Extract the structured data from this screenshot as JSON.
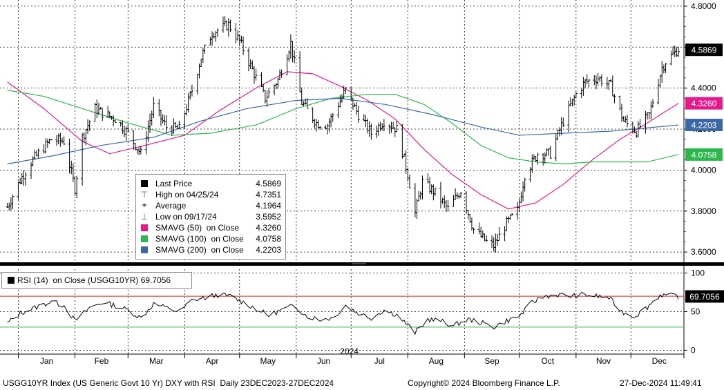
{
  "chart_data": [
    {
      "type": "line",
      "title": "USGG10YR Index (US Generic Govt 10 Yr) DXY with RSI  Daily 23DEC2023-27DEC2024",
      "ylim": [
        3.55,
        4.83
      ],
      "ytick_labels": [
        "4.8000",
        "4.6000",
        "4.4000",
        "4.2000",
        "4.0000",
        "3.8000",
        "3.6000"
      ],
      "yticks": [
        4.8,
        4.6,
        4.4,
        4.2,
        4.0,
        3.8,
        3.6
      ],
      "x_months": [
        "Jan",
        "Feb",
        "Mar",
        "Apr",
        "May",
        "Jun",
        "Jul",
        "Aug",
        "Sep",
        "Oct",
        "Nov",
        "Dec"
      ],
      "x_year_label": "2024",
      "grid": true,
      "price_series": {
        "name": "Last Price",
        "x": [
          "2023-12-26",
          "2024-01-02",
          "2024-01-08",
          "2024-01-15",
          "2024-01-19",
          "2024-01-26",
          "2024-02-01",
          "2024-02-05",
          "2024-02-12",
          "2024-02-16",
          "2024-02-23",
          "2024-03-01",
          "2024-03-08",
          "2024-03-15",
          "2024-03-22",
          "2024-03-29",
          "2024-04-05",
          "2024-04-10",
          "2024-04-16",
          "2024-04-25",
          "2024-05-01",
          "2024-05-08",
          "2024-05-15",
          "2024-05-22",
          "2024-05-29",
          "2024-06-04",
          "2024-06-12",
          "2024-06-18",
          "2024-06-28",
          "2024-07-05",
          "2024-07-12",
          "2024-07-19",
          "2024-07-26",
          "2024-08-01",
          "2024-08-05",
          "2024-08-09",
          "2024-08-16",
          "2024-08-23",
          "2024-08-30",
          "2024-09-06",
          "2024-09-13",
          "2024-09-17",
          "2024-09-24",
          "2024-09-30",
          "2024-10-04",
          "2024-10-11",
          "2024-10-18",
          "2024-10-25",
          "2024-11-01",
          "2024-11-06",
          "2024-11-13",
          "2024-11-20",
          "2024-11-27",
          "2024-12-04",
          "2024-12-11",
          "2024-12-18",
          "2024-12-20",
          "2024-12-27"
        ],
        "values": [
          3.82,
          3.95,
          4.04,
          4.11,
          4.15,
          4.14,
          3.91,
          4.16,
          4.3,
          4.28,
          4.25,
          4.18,
          4.08,
          4.31,
          4.21,
          4.2,
          4.39,
          4.55,
          4.67,
          4.71,
          4.63,
          4.49,
          4.35,
          4.44,
          4.62,
          4.33,
          4.23,
          4.22,
          4.39,
          4.27,
          4.18,
          4.24,
          4.2,
          3.98,
          3.79,
          3.94,
          3.89,
          3.81,
          3.9,
          3.71,
          3.65,
          3.63,
          3.74,
          3.8,
          3.98,
          4.08,
          4.08,
          4.24,
          4.37,
          4.43,
          4.45,
          4.41,
          4.24,
          4.19,
          4.27,
          4.5,
          4.53,
          4.59
        ]
      },
      "series": [
        {
          "name": "SMAVG (50)  on Close",
          "color": "#e6198c",
          "x": [
            "2023-12-26",
            "2024-01-15",
            "2024-02-05",
            "2024-02-20",
            "2024-03-10",
            "2024-04-01",
            "2024-04-20",
            "2024-05-10",
            "2024-05-27",
            "2024-06-10",
            "2024-06-25",
            "2024-07-10",
            "2024-07-25",
            "2024-08-10",
            "2024-08-25",
            "2024-09-10",
            "2024-09-25",
            "2024-10-10",
            "2024-10-25",
            "2024-11-10",
            "2024-11-25",
            "2024-12-10",
            "2024-12-27"
          ],
          "values": [
            4.43,
            4.3,
            4.14,
            4.08,
            4.12,
            4.17,
            4.29,
            4.4,
            4.48,
            4.47,
            4.41,
            4.34,
            4.25,
            4.1,
            3.98,
            3.88,
            3.81,
            3.84,
            3.93,
            4.05,
            4.15,
            4.23,
            4.326
          ]
        },
        {
          "name": "SMAVG (100)  on Close",
          "color": "#2db84d",
          "x": [
            "2023-12-26",
            "2024-01-15",
            "2024-02-05",
            "2024-03-01",
            "2024-03-25",
            "2024-04-15",
            "2024-05-10",
            "2024-06-01",
            "2024-06-20",
            "2024-07-10",
            "2024-07-25",
            "2024-08-10",
            "2024-08-25",
            "2024-09-10",
            "2024-09-25",
            "2024-10-10",
            "2024-10-25",
            "2024-11-10",
            "2024-11-25",
            "2024-12-10",
            "2024-12-27"
          ],
          "values": [
            4.39,
            4.36,
            4.3,
            4.23,
            4.17,
            4.18,
            4.22,
            4.3,
            4.35,
            4.37,
            4.37,
            4.32,
            4.23,
            4.12,
            4.06,
            4.04,
            4.03,
            4.04,
            4.04,
            4.04,
            4.076
          ]
        },
        {
          "name": "SMAVG (200)  on Close",
          "color": "#3a68a8",
          "x": [
            "2023-12-26",
            "2024-01-20",
            "2024-02-15",
            "2024-03-15",
            "2024-04-10",
            "2024-05-05",
            "2024-06-01",
            "2024-06-25",
            "2024-07-20",
            "2024-08-15",
            "2024-09-10",
            "2024-10-01",
            "2024-10-25",
            "2024-11-20",
            "2024-12-27"
          ],
          "values": [
            4.03,
            4.07,
            4.12,
            4.16,
            4.24,
            4.3,
            4.34,
            4.35,
            4.32,
            4.27,
            4.21,
            4.17,
            4.18,
            4.19,
            4.22
          ]
        }
      ],
      "last_value_tags": [
        {
          "label": "4.5869",
          "value": 4.5869,
          "bg": "#000000",
          "fg": "#ffffff"
        },
        {
          "label": "4.3260",
          "value": 4.326,
          "bg": "#e6198c",
          "fg": "#ffffff"
        },
        {
          "label": "4.2203",
          "value": 4.2203,
          "bg": "#3a68a8",
          "fg": "#ffffff"
        },
        {
          "label": "4.0758",
          "value": 4.0758,
          "bg": "#2db84d",
          "fg": "#ffffff"
        }
      ]
    },
    {
      "type": "line",
      "ylim": [
        -5,
        105
      ],
      "ytick_labels": [
        "100",
        "50",
        "0"
      ],
      "yticks": [
        100,
        50,
        0
      ],
      "overbought": 70,
      "oversold": 30,
      "series": [
        {
          "name": "RSI (14)  on Close (USGG10YR)",
          "color": "#000000",
          "x": [
            "2023-12-26",
            "2024-01-02",
            "2024-01-10",
            "2024-01-19",
            "2024-01-26",
            "2024-02-01",
            "2024-02-09",
            "2024-02-16",
            "2024-02-23",
            "2024-03-01",
            "2024-03-08",
            "2024-03-15",
            "2024-03-22",
            "2024-03-29",
            "2024-04-05",
            "2024-04-12",
            "2024-04-19",
            "2024-04-26",
            "2024-05-03",
            "2024-05-10",
            "2024-05-17",
            "2024-05-24",
            "2024-05-31",
            "2024-06-07",
            "2024-06-14",
            "2024-06-21",
            "2024-06-28",
            "2024-07-05",
            "2024-07-12",
            "2024-07-19",
            "2024-07-26",
            "2024-08-02",
            "2024-08-05",
            "2024-08-12",
            "2024-08-19",
            "2024-08-26",
            "2024-09-03",
            "2024-09-10",
            "2024-09-17",
            "2024-09-24",
            "2024-10-01",
            "2024-10-08",
            "2024-10-15",
            "2024-10-22",
            "2024-10-29",
            "2024-11-05",
            "2024-11-12",
            "2024-11-19",
            "2024-11-26",
            "2024-12-03",
            "2024-12-10",
            "2024-12-17",
            "2024-12-27"
          ],
          "values": [
            35,
            48,
            55,
            63,
            58,
            38,
            55,
            62,
            58,
            52,
            42,
            60,
            55,
            50,
            65,
            68,
            72,
            70,
            62,
            54,
            45,
            52,
            58,
            44,
            40,
            42,
            58,
            48,
            42,
            52,
            46,
            30,
            23,
            40,
            38,
            32,
            40,
            36,
            30,
            38,
            44,
            62,
            70,
            72,
            70,
            72,
            70,
            68,
            50,
            44,
            56,
            72,
            69.7056
          ]
        }
      ],
      "last_value_tags": [
        {
          "label": "69.7056",
          "value": 69.7056,
          "bg": "#000000",
          "fg": "#ffffff"
        }
      ]
    }
  ],
  "legend": {
    "rows": [
      {
        "label": "Last Price",
        "value": "4.5869",
        "symbol": "swatch",
        "color": "#000000"
      },
      {
        "label": "High on 04/25/24",
        "value": "4.7351",
        "symbol": "high"
      },
      {
        "label": "Average",
        "value": "4.1964",
        "symbol": "avg"
      },
      {
        "label": "Low on 09/17/24",
        "value": "3.5952",
        "symbol": "low"
      },
      {
        "label": "SMAVG (50)  on Close",
        "value": "4.3260",
        "symbol": "swatch",
        "color": "#e6198c"
      },
      {
        "label": "SMAVG (100)  on Close",
        "value": "4.0758",
        "symbol": "swatch",
        "color": "#2db84d"
      },
      {
        "label": "SMAVG (200)  on Close",
        "value": "4.2203",
        "symbol": "swatch",
        "color": "#3a68a8"
      }
    ]
  },
  "rsi_legend": "RSI (14)  on Close (USGG10YR) 69.7056",
  "footer": {
    "left": "USGG10YR Index (US Generic Govt 10 Yr) DXY with RSI  Daily 23DEC2023-27DEC2024",
    "center": "Copyright© 2024 Bloomberg Finance L.P.",
    "right": "27-Dec-2024 11:49:41"
  }
}
